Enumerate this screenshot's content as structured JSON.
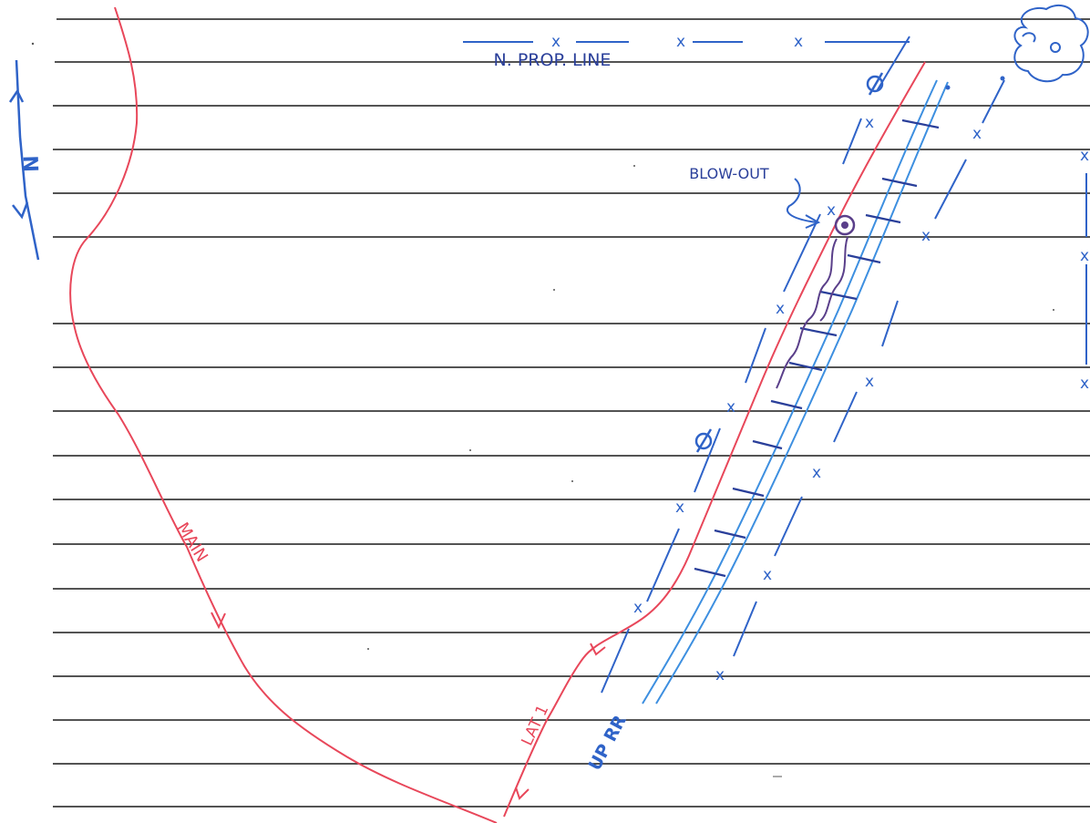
{
  "labels": {
    "north_arrow": "N",
    "north_property_line": "N. PROP. LINE",
    "blow_out": "BLOW-OUT",
    "main": "MAIN",
    "lat": "LAT 1",
    "railroad": "UP RR"
  },
  "colors": {
    "paper": "#ffffff",
    "ruled_line": "#1a1a1a",
    "pipe_red": "#e8475a",
    "blue_ink": "#2f63c8",
    "blue_dark": "#2a3f9a",
    "blue_light": "#3d8fe0",
    "purple_ink": "#5a3f8a"
  },
  "symbols": {
    "fence_marker": "x",
    "power_pole": "Ø"
  }
}
